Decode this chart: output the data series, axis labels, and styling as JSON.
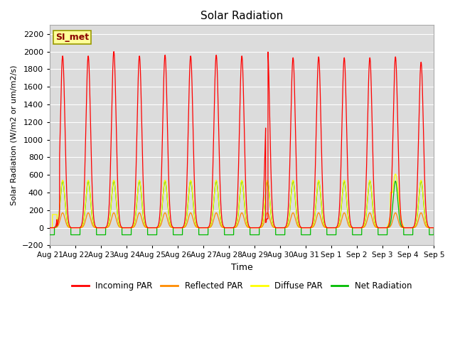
{
  "title": "Solar Radiation",
  "ylabel": "Solar Radiation (W/m2 or um/m2/s)",
  "xlabel": "Time",
  "ylim": [
    -200,
    2300
  ],
  "yticks": [
    -200,
    0,
    200,
    400,
    600,
    800,
    1000,
    1200,
    1400,
    1600,
    1800,
    2000,
    2200
  ],
  "xtick_labels": [
    "Aug 21",
    "Aug 22",
    "Aug 23",
    "Aug 24",
    "Aug 25",
    "Aug 26",
    "Aug 27",
    "Aug 28",
    "Aug 29",
    "Aug 30",
    "Aug 31",
    "Sep 1",
    "Sep 2",
    "Sep 3",
    "Sep 4",
    "Sep 5"
  ],
  "annotation_text": "SI_met",
  "annotation_color": "#8B0000",
  "annotation_bg": "#FFFF99",
  "annotation_border": "#999900",
  "bg_color": "#DCDCDC",
  "grid_color": "#FFFFFF",
  "colors": {
    "incoming_par": "#FF0000",
    "reflected_par": "#FF8C00",
    "diffuse_par": "#FFFF00",
    "net_radiation": "#00BB00"
  },
  "legend_labels": [
    "Incoming PAR",
    "Reflected PAR",
    "Diffuse PAR",
    "Net Radiation"
  ],
  "n_days": 15,
  "pts_per_day": 288
}
